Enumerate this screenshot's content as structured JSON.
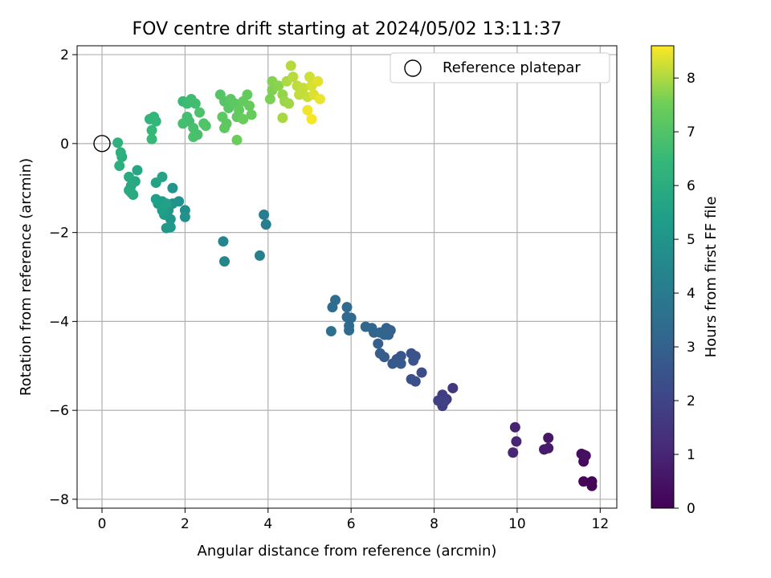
{
  "chart_data": {
    "type": "scatter",
    "title": "FOV centre drift starting at 2024/05/02 13:11:37",
    "xlabel": "Angular distance from reference (arcmin)",
    "ylabel": "Rotation from reference (arcmin)",
    "xlim": [
      -0.6,
      12.4
    ],
    "ylim": [
      -8.2,
      2.2
    ],
    "xticks": [
      0,
      2,
      4,
      6,
      8,
      10,
      12
    ],
    "xtick_labels": [
      "0",
      "2",
      "4",
      "6",
      "8",
      "10",
      "12"
    ],
    "yticks": [
      2,
      0,
      -2,
      -4,
      -6,
      -8
    ],
    "ytick_labels": [
      "2",
      "0",
      "−2",
      "−4",
      "−6",
      "−8"
    ],
    "grid": true,
    "legend": {
      "position": "top-right",
      "entries": [
        "Reference platepar"
      ]
    },
    "reference_point": {
      "x": 0,
      "y": 0
    },
    "colorbar": {
      "label": "Hours from first FF file",
      "colormap": "viridis",
      "range": [
        0,
        8.6
      ],
      "ticks": [
        0,
        1,
        2,
        3,
        4,
        5,
        6,
        7,
        8
      ],
      "tick_labels": [
        "0",
        "1",
        "2",
        "3",
        "4",
        "5",
        "6",
        "7",
        "8"
      ]
    },
    "points": [
      {
        "x": 11.8,
        "y": -7.7,
        "h": 0.05
      },
      {
        "x": 11.8,
        "y": -7.6,
        "h": 0.1
      },
      {
        "x": 11.6,
        "y": -7.6,
        "h": 0.15
      },
      {
        "x": 11.6,
        "y": -7.15,
        "h": 0.25
      },
      {
        "x": 11.6,
        "y": -7.0,
        "h": 0.3
      },
      {
        "x": 11.55,
        "y": -6.98,
        "h": 0.35
      },
      {
        "x": 11.65,
        "y": -7.02,
        "h": 0.4
      },
      {
        "x": 10.75,
        "y": -6.62,
        "h": 0.6
      },
      {
        "x": 10.75,
        "y": -6.85,
        "h": 0.7
      },
      {
        "x": 10.65,
        "y": -6.88,
        "h": 0.75
      },
      {
        "x": 9.95,
        "y": -6.38,
        "h": 0.9
      },
      {
        "x": 9.98,
        "y": -6.7,
        "h": 1.0
      },
      {
        "x": 9.9,
        "y": -6.95,
        "h": 1.05
      },
      {
        "x": 8.45,
        "y": -5.5,
        "h": 1.6
      },
      {
        "x": 8.3,
        "y": -5.75,
        "h": 1.7
      },
      {
        "x": 8.2,
        "y": -5.65,
        "h": 1.75
      },
      {
        "x": 8.2,
        "y": -5.9,
        "h": 1.8
      },
      {
        "x": 8.1,
        "y": -5.78,
        "h": 1.85
      },
      {
        "x": 8.25,
        "y": -5.8,
        "h": 1.9
      },
      {
        "x": 7.7,
        "y": -5.15,
        "h": 2.3
      },
      {
        "x": 7.55,
        "y": -5.35,
        "h": 2.35
      },
      {
        "x": 7.45,
        "y": -5.3,
        "h": 2.4
      },
      {
        "x": 7.55,
        "y": -4.78,
        "h": 2.45
      },
      {
        "x": 7.45,
        "y": -4.72,
        "h": 2.5
      },
      {
        "x": 7.5,
        "y": -4.88,
        "h": 2.55
      },
      {
        "x": 7.2,
        "y": -4.78,
        "h": 2.6
      },
      {
        "x": 7.1,
        "y": -4.85,
        "h": 2.65
      },
      {
        "x": 7.0,
        "y": -4.95,
        "h": 2.7
      },
      {
        "x": 7.2,
        "y": -4.95,
        "h": 2.75
      },
      {
        "x": 6.8,
        "y": -4.8,
        "h": 2.8
      },
      {
        "x": 6.7,
        "y": -4.72,
        "h": 2.85
      },
      {
        "x": 6.65,
        "y": -4.5,
        "h": 2.9
      },
      {
        "x": 6.95,
        "y": -4.2,
        "h": 2.95
      },
      {
        "x": 6.85,
        "y": -4.15,
        "h": 3.0
      },
      {
        "x": 6.9,
        "y": -4.3,
        "h": 3.05
      },
      {
        "x": 6.8,
        "y": -4.3,
        "h": 3.1
      },
      {
        "x": 6.7,
        "y": -4.25,
        "h": 3.12
      },
      {
        "x": 6.5,
        "y": -4.15,
        "h": 3.15
      },
      {
        "x": 6.35,
        "y": -4.12,
        "h": 3.18
      },
      {
        "x": 6.55,
        "y": -4.25,
        "h": 3.2
      },
      {
        "x": 6.0,
        "y": -3.92,
        "h": 3.25
      },
      {
        "x": 5.9,
        "y": -3.9,
        "h": 3.28
      },
      {
        "x": 5.9,
        "y": -3.68,
        "h": 3.3
      },
      {
        "x": 5.95,
        "y": -4.1,
        "h": 3.32
      },
      {
        "x": 5.95,
        "y": -4.2,
        "h": 3.35
      },
      {
        "x": 5.62,
        "y": -3.52,
        "h": 3.4
      },
      {
        "x": 5.55,
        "y": -3.68,
        "h": 3.45
      },
      {
        "x": 5.52,
        "y": -4.22,
        "h": 3.5
      },
      {
        "x": 3.9,
        "y": -1.6,
        "h": 4.1
      },
      {
        "x": 3.95,
        "y": -1.82,
        "h": 4.15
      },
      {
        "x": 3.8,
        "y": -2.52,
        "h": 4.2
      },
      {
        "x": 2.92,
        "y": -2.2,
        "h": 4.4
      },
      {
        "x": 2.95,
        "y": -2.65,
        "h": 4.45
      },
      {
        "x": 2.0,
        "y": -1.5,
        "h": 4.8
      },
      {
        "x": 2.0,
        "y": -1.65,
        "h": 4.85
      },
      {
        "x": 1.85,
        "y": -1.3,
        "h": 4.9
      },
      {
        "x": 1.7,
        "y": -1.35,
        "h": 4.95
      },
      {
        "x": 1.7,
        "y": -1.0,
        "h": 5.0
      },
      {
        "x": 1.6,
        "y": -1.5,
        "h": 5.05
      },
      {
        "x": 1.65,
        "y": -1.7,
        "h": 5.1
      },
      {
        "x": 1.55,
        "y": -1.9,
        "h": 5.15
      },
      {
        "x": 1.65,
        "y": -1.88,
        "h": 5.2
      },
      {
        "x": 1.5,
        "y": -1.6,
        "h": 5.25
      },
      {
        "x": 1.45,
        "y": -1.3,
        "h": 5.3
      },
      {
        "x": 1.35,
        "y": -1.35,
        "h": 5.35
      },
      {
        "x": 1.3,
        "y": -1.25,
        "h": 5.4
      },
      {
        "x": 1.45,
        "y": -1.5,
        "h": 5.45
      },
      {
        "x": 1.55,
        "y": -1.35,
        "h": 5.5
      },
      {
        "x": 1.3,
        "y": -0.88,
        "h": 5.55
      },
      {
        "x": 1.45,
        "y": -0.75,
        "h": 5.6
      },
      {
        "x": 0.85,
        "y": -0.6,
        "h": 5.7
      },
      {
        "x": 0.8,
        "y": -0.85,
        "h": 5.75
      },
      {
        "x": 0.7,
        "y": -0.95,
        "h": 5.8
      },
      {
        "x": 0.65,
        "y": -1.05,
        "h": 5.82
      },
      {
        "x": 0.75,
        "y": -1.15,
        "h": 5.85
      },
      {
        "x": 0.65,
        "y": -0.75,
        "h": 5.88
      },
      {
        "x": 0.7,
        "y": -1.1,
        "h": 5.9
      },
      {
        "x": 0.48,
        "y": -0.3,
        "h": 6.0
      },
      {
        "x": 0.42,
        "y": -0.5,
        "h": 6.05
      },
      {
        "x": 0.45,
        "y": -0.2,
        "h": 6.1
      },
      {
        "x": 0.38,
        "y": 0.02,
        "h": 6.15
      },
      {
        "x": 1.15,
        "y": 0.55,
        "h": 6.3
      },
      {
        "x": 1.25,
        "y": 0.6,
        "h": 6.35
      },
      {
        "x": 1.3,
        "y": 0.5,
        "h": 6.4
      },
      {
        "x": 1.2,
        "y": 0.3,
        "h": 6.45
      },
      {
        "x": 1.2,
        "y": 0.1,
        "h": 6.5
      },
      {
        "x": 1.95,
        "y": 0.95,
        "h": 6.55
      },
      {
        "x": 2.05,
        "y": 0.9,
        "h": 6.6
      },
      {
        "x": 2.15,
        "y": 1.0,
        "h": 6.65
      },
      {
        "x": 2.25,
        "y": 0.9,
        "h": 6.7
      },
      {
        "x": 2.05,
        "y": 0.6,
        "h": 6.72
      },
      {
        "x": 2.1,
        "y": 0.5,
        "h": 6.75
      },
      {
        "x": 1.95,
        "y": 0.45,
        "h": 6.78
      },
      {
        "x": 2.2,
        "y": 0.35,
        "h": 6.8
      },
      {
        "x": 2.3,
        "y": 0.2,
        "h": 6.82
      },
      {
        "x": 2.2,
        "y": 0.15,
        "h": 6.85
      },
      {
        "x": 2.35,
        "y": 0.7,
        "h": 6.9
      },
      {
        "x": 2.45,
        "y": 0.45,
        "h": 6.95
      },
      {
        "x": 2.5,
        "y": 0.4,
        "h": 7.0
      },
      {
        "x": 2.85,
        "y": 1.1,
        "h": 7.05
      },
      {
        "x": 2.95,
        "y": 0.95,
        "h": 7.1
      },
      {
        "x": 3.05,
        "y": 0.8,
        "h": 7.12
      },
      {
        "x": 3.1,
        "y": 1.0,
        "h": 7.15
      },
      {
        "x": 3.2,
        "y": 0.9,
        "h": 7.18
      },
      {
        "x": 2.9,
        "y": 0.6,
        "h": 7.2
      },
      {
        "x": 3.0,
        "y": 0.45,
        "h": 7.22
      },
      {
        "x": 2.95,
        "y": 0.35,
        "h": 7.25
      },
      {
        "x": 3.25,
        "y": 0.6,
        "h": 7.28
      },
      {
        "x": 3.3,
        "y": 0.75,
        "h": 7.3
      },
      {
        "x": 3.4,
        "y": 0.95,
        "h": 7.32
      },
      {
        "x": 3.5,
        "y": 1.1,
        "h": 7.35
      },
      {
        "x": 3.55,
        "y": 0.85,
        "h": 7.38
      },
      {
        "x": 3.6,
        "y": 0.65,
        "h": 7.4
      },
      {
        "x": 3.4,
        "y": 0.55,
        "h": 7.42
      },
      {
        "x": 3.25,
        "y": 0.08,
        "h": 7.45
      },
      {
        "x": 4.05,
        "y": 1.0,
        "h": 7.6
      },
      {
        "x": 4.1,
        "y": 1.2,
        "h": 7.65
      },
      {
        "x": 4.1,
        "y": 1.4,
        "h": 7.7
      },
      {
        "x": 4.25,
        "y": 1.3,
        "h": 7.75
      },
      {
        "x": 4.35,
        "y": 1.1,
        "h": 7.8
      },
      {
        "x": 4.4,
        "y": 0.95,
        "h": 7.85
      },
      {
        "x": 4.5,
        "y": 0.9,
        "h": 7.9
      },
      {
        "x": 4.35,
        "y": 0.58,
        "h": 7.95
      },
      {
        "x": 4.45,
        "y": 1.4,
        "h": 8.0
      },
      {
        "x": 4.55,
        "y": 1.75,
        "h": 8.05
      },
      {
        "x": 4.6,
        "y": 1.5,
        "h": 8.1
      },
      {
        "x": 4.7,
        "y": 1.3,
        "h": 8.12
      },
      {
        "x": 4.75,
        "y": 1.1,
        "h": 8.15
      },
      {
        "x": 4.85,
        "y": 1.25,
        "h": 8.18
      },
      {
        "x": 4.95,
        "y": 1.05,
        "h": 8.2
      },
      {
        "x": 5.0,
        "y": 1.5,
        "h": 8.25
      },
      {
        "x": 5.05,
        "y": 1.3,
        "h": 8.3
      },
      {
        "x": 5.1,
        "y": 1.1,
        "h": 8.35
      },
      {
        "x": 5.2,
        "y": 1.4,
        "h": 8.4
      },
      {
        "x": 5.25,
        "y": 1.0,
        "h": 8.45
      },
      {
        "x": 4.95,
        "y": 0.75,
        "h": 8.5
      },
      {
        "x": 5.05,
        "y": 0.55,
        "h": 8.55
      }
    ]
  }
}
